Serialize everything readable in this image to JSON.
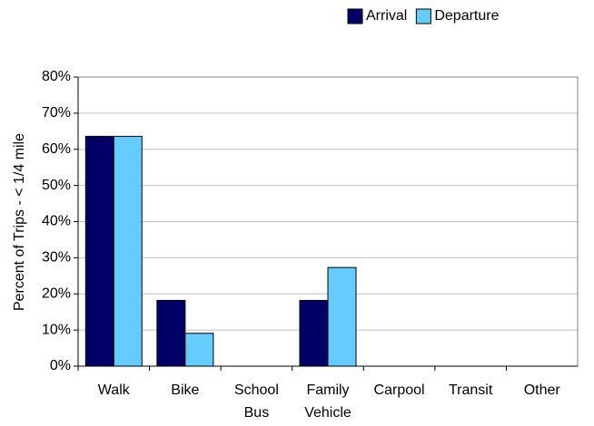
{
  "chart_data": {
    "type": "bar",
    "y_label": "Percent of Trips - < 1/4 mile",
    "categories": [
      "Walk",
      "Bike",
      "School Bus",
      "Family Vehicle",
      "Carpool",
      "Transit",
      "Other"
    ],
    "series": [
      {
        "name": "Arrival",
        "color": "#000066",
        "values": [
          63.6,
          18.2,
          0,
          18.2,
          0,
          0,
          0
        ]
      },
      {
        "name": "Departure",
        "color": "#66ccff",
        "values": [
          63.6,
          9.1,
          0,
          27.3,
          0,
          0,
          0
        ]
      }
    ],
    "ylim": [
      0,
      80
    ],
    "yticks": [
      {
        "value": 0,
        "label": "0%"
      },
      {
        "value": 10,
        "label": "10%"
      },
      {
        "value": 20,
        "label": "20%"
      },
      {
        "value": 30,
        "label": "30%"
      },
      {
        "value": 40,
        "label": "40%"
      },
      {
        "value": 50,
        "label": "50%"
      },
      {
        "value": 60,
        "label": "60%"
      },
      {
        "value": 70,
        "label": "70%"
      },
      {
        "value": 80,
        "label": "80%"
      }
    ],
    "grid": true,
    "legend": "top-right"
  }
}
